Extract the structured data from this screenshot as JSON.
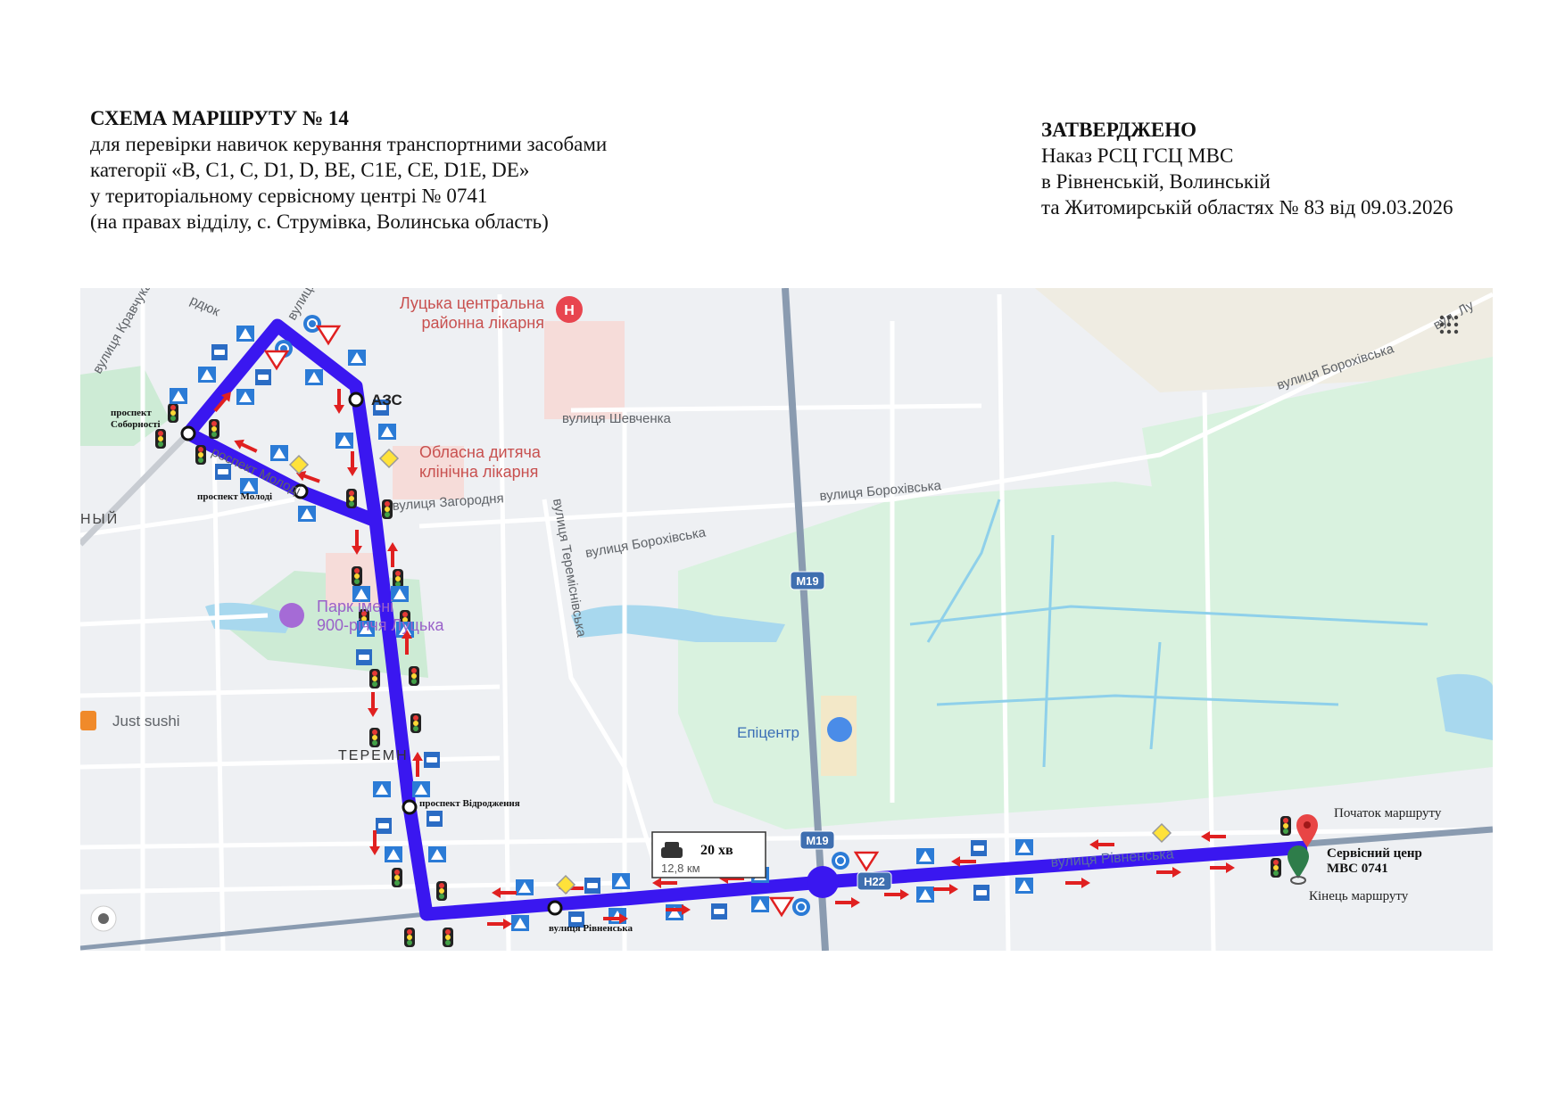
{
  "header_left": {
    "title": "СХЕМА МАРШРУТУ № 14",
    "lines": [
      "для перевірки навичок керування транспортними засобами",
      "категорії «B, C1, C, D1, D, BE, C1E, CE, D1E, DE»",
      "у територіальному сервісному центрі № 0741",
      "(на правах відділу, с. Струмівка, Волинська область)"
    ]
  },
  "header_right": {
    "title": "ЗАТВЕРДЖЕНО",
    "lines": [
      "Наказ РСЦ ГСЦ МВС",
      "в Рівненській, Волинській",
      "та Житомирській областях № 83 від 09.03.2026"
    ]
  },
  "map": {
    "route_color": "#3a17f0",
    "arrow_color": "#e02020",
    "poi": {
      "hospital_1": [
        "Луцька центральна",
        "районна лікарня"
      ],
      "hospital_2": [
        "Обласна дитяча",
        "клінічна лікарня"
      ],
      "fuel": "АЗС",
      "park": [
        "Парк імені",
        "900-річчя Луцька"
      ],
      "shop": "Епіцентр",
      "restaurant": "Just sushi",
      "district": "ТЕРЕМН",
      "district_2": "НЫЙ"
    },
    "streets": {
      "shevchenka": "вулиця Шевченка",
      "zahorodnia": "вулиця Загородня",
      "teremnivska": "вулиця Тереміснівська",
      "borokhivska_1": "вулиця Борохівська",
      "borokhivska_2": "вулиця Борохівська",
      "borokhivska_3": "вулиця Борохівська",
      "rivnenska_map": "вулиця Рівненська",
      "kravchuka": "вулиця Кравчука",
      "hordiiuk": "рдюк",
      "vulytsia_top": "вулиця",
      "vul_lu": "вул. Лу",
      "molodi_map": "роспект Молоді"
    },
    "road_shields": [
      "M19",
      "M19",
      "H22"
    ],
    "annotations": {
      "sobornosti": [
        "проспект",
        "Соборності"
      ],
      "molodi": "проспект Молоді",
      "vidrodzhennia": "проспект Відродження",
      "rivnenska": "вулиця Рівненська",
      "start": "Початок маршруту",
      "service_center": [
        "Сервісний ценр",
        "МВС 0741"
      ],
      "end": "Кінець маршруту"
    },
    "route_info": {
      "icon": "car-icon",
      "duration": "20 хв",
      "distance": "12,8 км"
    }
  }
}
